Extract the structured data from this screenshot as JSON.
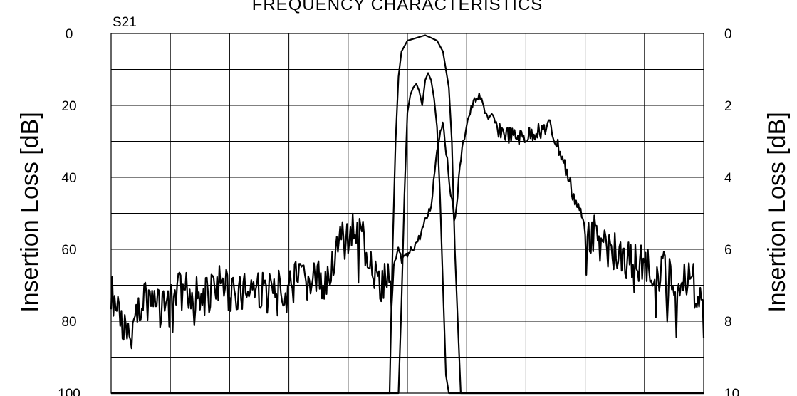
{
  "chart_data": {
    "type": "line",
    "title": "FREQUENCY CHARACTERISTICS",
    "subtitle": "S21",
    "ylabel_left": "Insertion Loss [dB]",
    "ylabel_right": "Insertion Loss [dB]",
    "ylim_left": [
      0,
      100
    ],
    "ylim_right": [
      0,
      10
    ],
    "y_inverted": true,
    "yticks_left": [
      "0",
      "20",
      "40",
      "60",
      "80",
      "100"
    ],
    "yticks_right": [
      "0",
      "2",
      "4",
      "6",
      "8",
      "10"
    ],
    "x_divisions": 10,
    "grid": true,
    "series": [
      {
        "axis": "left",
        "x": [
          0,
          0.3,
          0.6,
          0.9,
          1.2,
          1.5,
          1.8,
          2.1,
          2.4,
          2.7,
          3.0,
          3.3,
          3.6,
          3.9,
          4.2,
          4.5,
          4.8,
          5.0,
          5.2,
          5.4,
          5.5,
          5.6,
          5.7,
          5.8,
          5.9,
          6.0,
          6.1,
          6.2,
          6.35,
          6.5,
          6.65,
          6.8,
          7.0,
          7.2,
          7.4,
          7.6,
          7.8,
          8.0,
          8.3,
          8.6,
          8.9,
          9.2,
          9.5,
          9.8,
          10.0
        ],
        "y": [
          72,
          85,
          70,
          78,
          71,
          74,
          70,
          72,
          71,
          73,
          69,
          70,
          68,
          58,
          53,
          70,
          65,
          62,
          57,
          48,
          32,
          24,
          40,
          53,
          35,
          25,
          20,
          17,
          23,
          26,
          28,
          29,
          29,
          27,
          26,
          34,
          45,
          54,
          58,
          62,
          64,
          66,
          67,
          68,
          80
        ]
      },
      {
        "axis": "right",
        "x": [
          0,
          4.7,
          4.75,
          4.8,
          4.85,
          4.9,
          5.0,
          5.1,
          5.2,
          5.3,
          5.4,
          5.5,
          5.6,
          5.7,
          5.75,
          5.8,
          5.85,
          5.9,
          10.0
        ],
        "y": [
          10,
          10,
          6.0,
          3.0,
          1.2,
          0.5,
          0.2,
          0.15,
          0.1,
          0.05,
          0.12,
          0.2,
          0.5,
          1.5,
          3.0,
          6.0,
          8.0,
          10,
          10
        ]
      },
      {
        "axis": "right",
        "x": [
          0,
          4.85,
          4.9,
          4.95,
          5.0,
          5.05,
          5.1,
          5.15,
          5.2,
          5.25,
          5.3,
          5.35,
          5.4,
          5.45,
          5.5,
          5.55,
          5.6,
          5.65,
          5.7,
          10.0
        ],
        "y": [
          10,
          10,
          7.5,
          4.5,
          2.2,
          1.7,
          1.5,
          1.4,
          1.6,
          2.0,
          1.3,
          1.1,
          1.3,
          1.8,
          2.6,
          4.5,
          7.0,
          9.5,
          10,
          10
        ]
      }
    ]
  }
}
